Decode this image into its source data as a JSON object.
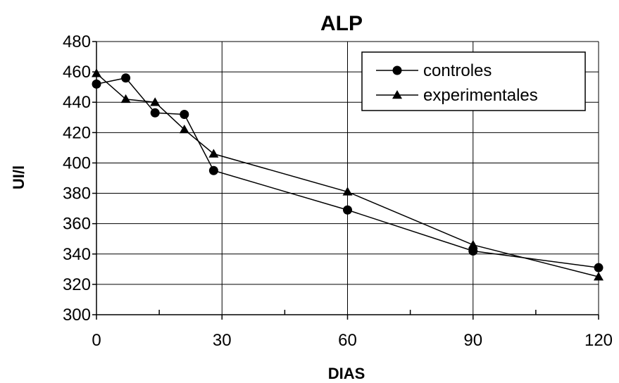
{
  "chart_data": {
    "type": "line",
    "title": "ALP",
    "xlabel": "DIAS",
    "ylabel": "UI/l",
    "xlim": [
      0,
      120
    ],
    "ylim": [
      300,
      480
    ],
    "x_ticks": [
      0,
      30,
      60,
      90,
      120
    ],
    "x_minor_ticks": [
      15,
      45,
      75,
      105
    ],
    "y_ticks": [
      300,
      320,
      340,
      360,
      380,
      400,
      420,
      440,
      460,
      480
    ],
    "grid": true,
    "legend_position": "top-right",
    "series": [
      {
        "name": "controles",
        "marker": "circle",
        "color": "#000000",
        "x": [
          0,
          7,
          14,
          21,
          28,
          60,
          90,
          120
        ],
        "y": [
          452,
          456,
          433,
          432,
          395,
          369,
          342,
          331
        ]
      },
      {
        "name": "experimentales",
        "marker": "triangle",
        "color": "#000000",
        "x": [
          0,
          7,
          14,
          21,
          28,
          60,
          90,
          120
        ],
        "y": [
          459,
          442,
          440,
          422,
          406,
          381,
          346,
          325
        ]
      }
    ]
  }
}
